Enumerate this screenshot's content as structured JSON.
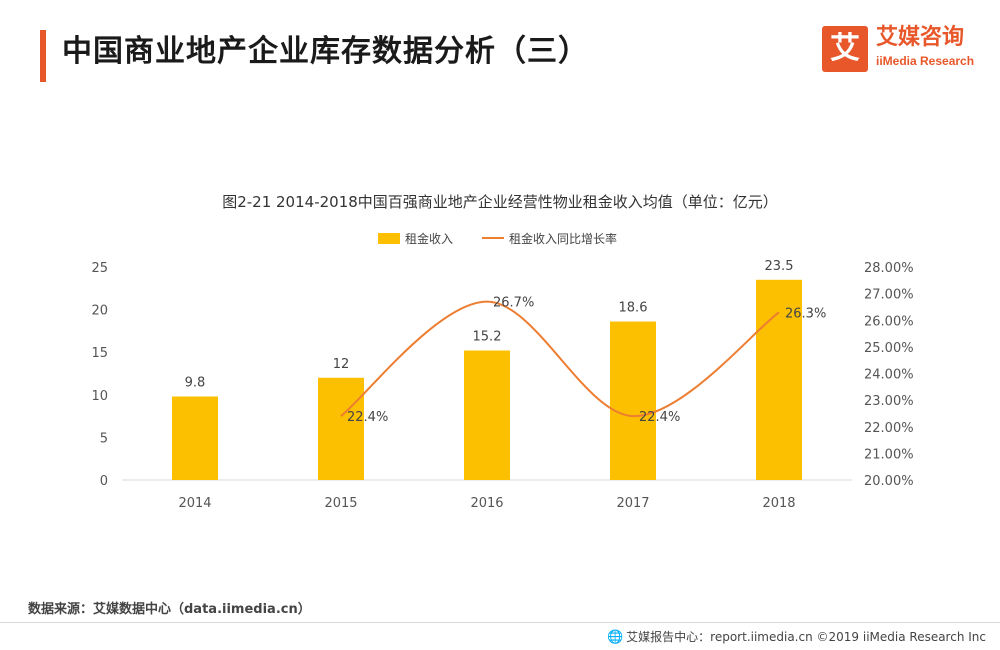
{
  "header": {
    "title": "中国商业地产企业库存数据分析（三）",
    "accent_color": "#e8572a"
  },
  "logo": {
    "mark": "艾",
    "name_cn": "艾媒咨询",
    "name_en": "iiMedia Research",
    "brand_color": "#e8572a"
  },
  "chart_data": {
    "type": "bar",
    "title": "图2-21 2014-2018中国百强商业地产企业经营性物业租金收入均值（单位：亿元）",
    "categories": [
      "2014",
      "2015",
      "2016",
      "2017",
      "2018"
    ],
    "series": [
      {
        "name": "租金收入",
        "type": "bar",
        "axis": "left",
        "color": "#fcc000",
        "values": [
          9.8,
          12,
          15.2,
          18.6,
          23.5
        ],
        "labels": [
          "9.8",
          "12",
          "15.2",
          "18.6",
          "23.5"
        ]
      },
      {
        "name": "租金收入同比增长率",
        "type": "line",
        "smooth": true,
        "axis": "right",
        "color": "#ed7d31",
        "values": [
          null,
          22.4,
          26.7,
          22.4,
          26.3
        ],
        "labels": [
          null,
          "22.4%",
          "26.7%",
          "22.4%",
          "26.3%"
        ]
      }
    ],
    "ylim": [
      0,
      25
    ],
    "yticks": [
      "0",
      "5",
      "10",
      "15",
      "20",
      "25"
    ],
    "y2lim": [
      20,
      28
    ],
    "y2ticks": [
      "20.00%",
      "21.00%",
      "22.00%",
      "23.00%",
      "24.00%",
      "25.00%",
      "26.00%",
      "27.00%",
      "28.00%"
    ],
    "grid": false,
    "legend": "top-center"
  },
  "footer": {
    "source": "数据来源：艾媒数据中心（data.iimedia.cn）",
    "credit": "艾媒报告中心：report.iimedia.cn  ©2019  iiMedia Research Inc"
  }
}
